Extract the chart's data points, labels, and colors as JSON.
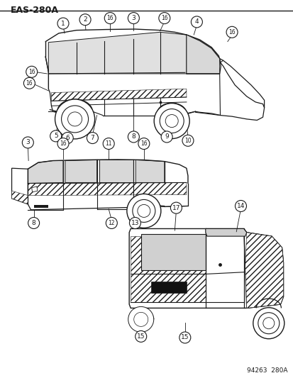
{
  "title": "EAS-280A",
  "footer": "94263  280A",
  "fig_width": 4.14,
  "fig_height": 5.33,
  "dpi": 100,
  "bg": "#ffffff",
  "lc": "#1a1a1a",
  "title_fontsize": 9,
  "footer_fontsize": 6.5,
  "callout_fontsize": 6.5
}
